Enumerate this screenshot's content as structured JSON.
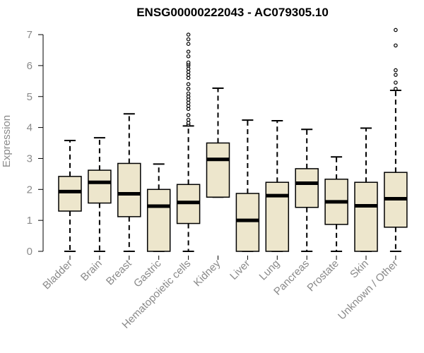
{
  "chart_data": {
    "type": "box",
    "title": "ENSG00000222043 - AC079305.10",
    "ylabel": "Expression",
    "xlabel": "",
    "ylim": [
      0,
      7
    ],
    "yticks": [
      "0",
      "1",
      "2",
      "3",
      "4",
      "5",
      "6",
      "7"
    ],
    "grid": false,
    "legend": "none",
    "box_fill": "#ede6cc",
    "box_stroke": "#000000",
    "categories": [
      "Bladder",
      "Brain",
      "Breast",
      "Gastric",
      "Hematopoietic cells",
      "Kidney",
      "Liver",
      "Lung",
      "Pancreas",
      "Prostate",
      "Skin",
      "Unknown / Other"
    ],
    "boxes": [
      {
        "min": 0,
        "q1": 1.3,
        "median": 1.93,
        "q3": 2.42,
        "max": 3.58,
        "outliers": []
      },
      {
        "min": 0,
        "q1": 1.56,
        "median": 2.23,
        "q3": 2.62,
        "max": 3.67,
        "outliers": []
      },
      {
        "min": 0,
        "q1": 1.12,
        "median": 1.86,
        "q3": 2.84,
        "max": 4.44,
        "outliers": []
      },
      {
        "min": 0,
        "q1": 0,
        "median": 1.46,
        "q3": 2.0,
        "max": 2.82,
        "outliers": []
      },
      {
        "min": 0,
        "q1": 0.9,
        "median": 1.58,
        "q3": 2.16,
        "max": 4.05,
        "outliers": [
          4.1,
          4.15,
          4.25,
          4.4,
          4.6,
          4.7,
          4.8,
          4.9,
          5.0,
          5.1,
          5.25,
          5.4,
          5.6,
          5.7,
          5.8,
          5.9,
          6.0,
          6.05,
          6.1,
          6.3,
          6.45,
          6.7,
          6.85,
          7.0
        ]
      },
      {
        "min": 1.75,
        "q1": 1.75,
        "median": 2.97,
        "q3": 3.5,
        "max": 5.27,
        "outliers": []
      },
      {
        "min": 0,
        "q1": 0,
        "median": 1.0,
        "q3": 1.87,
        "max": 4.24,
        "outliers": []
      },
      {
        "min": 0,
        "q1": 0,
        "median": 1.8,
        "q3": 2.23,
        "max": 4.22,
        "outliers": []
      },
      {
        "min": 0,
        "q1": 1.42,
        "median": 2.2,
        "q3": 2.67,
        "max": 3.94,
        "outliers": []
      },
      {
        "min": 0,
        "q1": 0.87,
        "median": 1.6,
        "q3": 2.33,
        "max": 3.05,
        "outliers": []
      },
      {
        "min": 0,
        "q1": 0,
        "median": 1.47,
        "q3": 2.23,
        "max": 3.98,
        "outliers": []
      },
      {
        "min": 0,
        "q1": 0.78,
        "median": 1.7,
        "q3": 2.55,
        "max": 5.2,
        "outliers": [
          5.25,
          5.45,
          5.7,
          5.85,
          6.65,
          7.15
        ]
      }
    ]
  }
}
